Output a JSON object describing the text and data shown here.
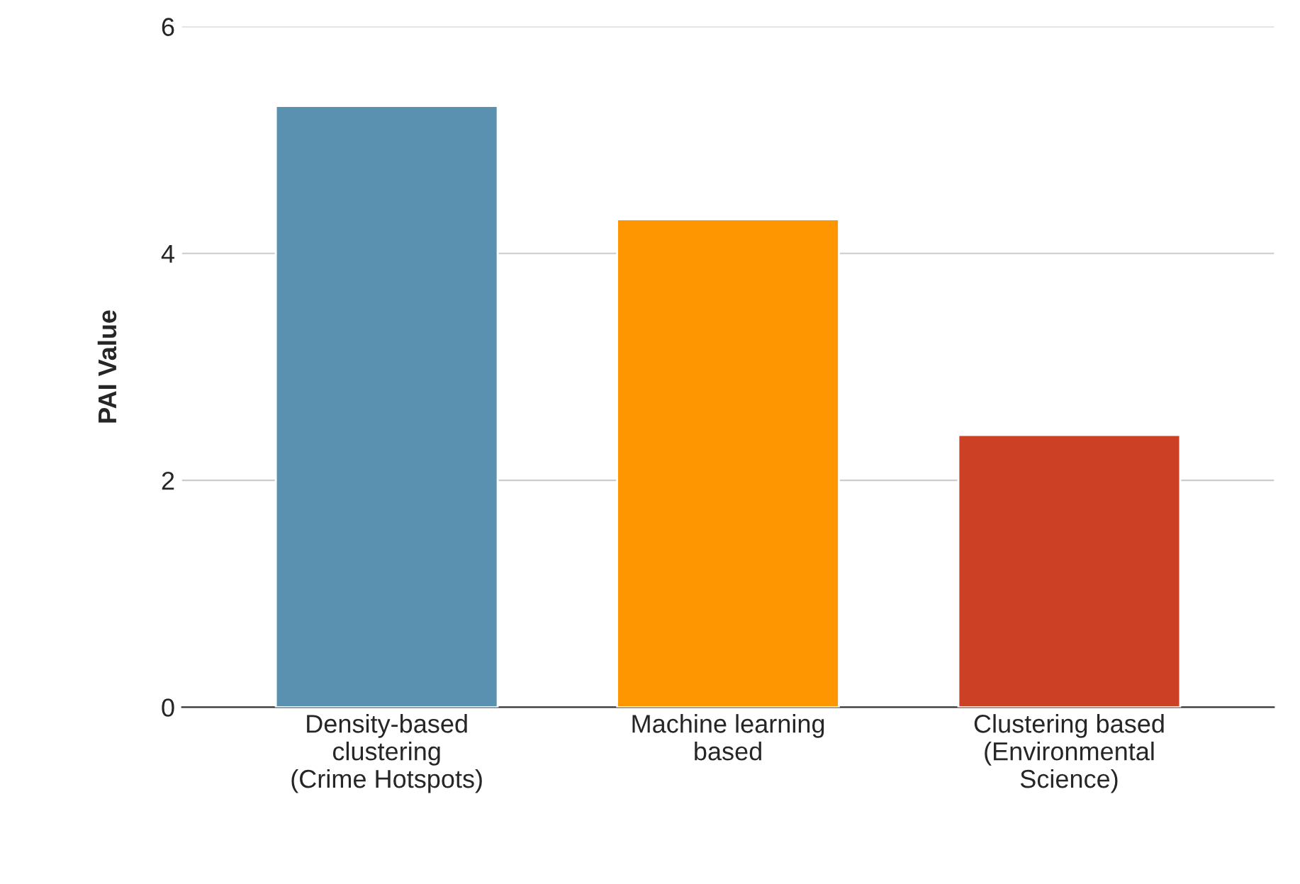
{
  "chart_data": {
    "type": "bar",
    "ylabel": "PAI Value",
    "categories": [
      "Density-based\nclustering\n(Crime Hotspots)",
      "Machine learning\nbased",
      "Clustering based\n(Environmental\nScience)"
    ],
    "values": [
      5.3,
      4.3,
      2.4
    ],
    "colors": [
      "#5a91b0",
      "#fd9600",
      "#cc4125"
    ],
    "ylim": [
      0,
      6
    ],
    "yticks": [
      0,
      2,
      4,
      6
    ],
    "grid": "y"
  }
}
